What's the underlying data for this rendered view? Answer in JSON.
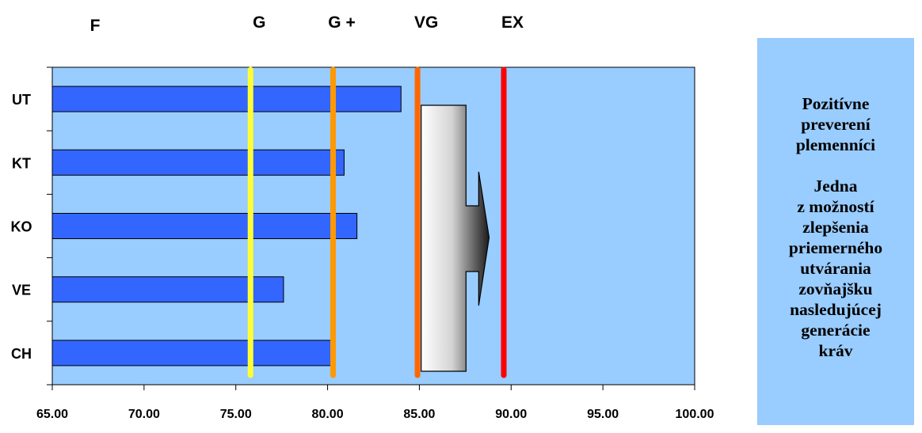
{
  "chart_data": {
    "type": "bar",
    "orientation": "horizontal",
    "categories": [
      "UT",
      "KT",
      "KO",
      "VE",
      "CH"
    ],
    "values": [
      84.0,
      80.9,
      81.6,
      77.6,
      80.3
    ],
    "xlim": [
      65.0,
      100.0
    ],
    "x_ticks": [
      "65.00",
      "70.00",
      "75.00",
      "80.00",
      "85.00",
      "90.00",
      "95.00",
      "100.00"
    ],
    "grid": false,
    "bar_color": "#3366ff",
    "plot_background": "#99ccff",
    "thresholds": [
      {
        "label": "F",
        "value": null,
        "color": null
      },
      {
        "label": "G",
        "value": 75.8,
        "color": "#ffff33"
      },
      {
        "label": "G +",
        "value": 80.3,
        "color": "#ff9900"
      },
      {
        "label": "VG",
        "value": 84.9,
        "color": "#ff6600"
      },
      {
        "label": "EX",
        "value": 89.6,
        "color": "#ff0000"
      }
    ],
    "arrow_start": 85.1,
    "arrow_end": 88.8
  },
  "side_panel": {
    "para1": [
      "Pozitívne",
      "preverení",
      "plemenníci"
    ],
    "para2": [
      "Jedna",
      "z možností",
      "zlepšenia",
      "priemerného",
      "utvárania",
      "zovňajšku",
      "nasledujúcej",
      "generácie",
      "kráv"
    ]
  }
}
